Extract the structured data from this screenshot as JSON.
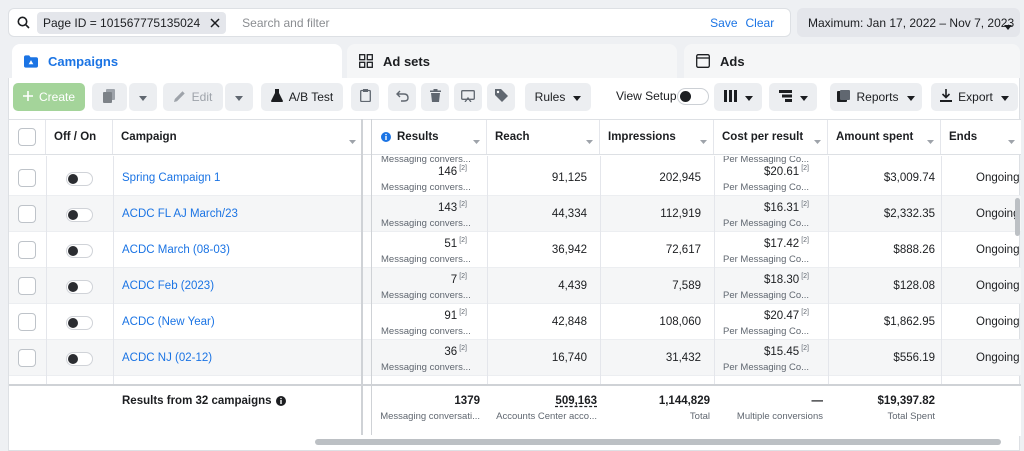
{
  "filter": {
    "chip_label": "Page ID = 101567775135024",
    "placeholder": "Search and filter",
    "save_label": "Save",
    "clear_label": "Clear"
  },
  "date_range": "Maximum: Jan 17, 2022 – Nov 7, 2023",
  "tabs": [
    {
      "label": "Campaigns",
      "icon": "folder-icon",
      "active": true
    },
    {
      "label": "Ad sets",
      "icon": "grid-icon",
      "active": false
    },
    {
      "label": "Ads",
      "icon": "ad-window-icon",
      "active": false
    }
  ],
  "toolbar": {
    "create_label": "Create",
    "edit_label": "Edit",
    "ab_test_label": "A/B Test",
    "rules_label": "Rules",
    "view_setup_label": "View Setup",
    "reports_label": "Reports",
    "export_label": "Export"
  },
  "columns": {
    "off_on": "Off / On",
    "campaign": "Campaign",
    "results": "Results",
    "reach": "Reach",
    "impressions": "Impressions",
    "cost_per_result": "Cost per result",
    "amount_spent": "Amount spent",
    "ends": "Ends"
  },
  "top_partial": {
    "results_sub": "Messaging convers...",
    "cpr_sub": "Per Messaging Co..."
  },
  "rows": [
    {
      "campaign": "Spring Campaign 1",
      "results": "146",
      "results_sub": "Messaging convers...",
      "reach": "91,125",
      "impressions": "202,945",
      "cost": "$20.61",
      "cost_sub": "Per Messaging Co...",
      "spent": "$3,009.74",
      "ends": "Ongoing"
    },
    {
      "campaign": "ACDC FL AJ March/23",
      "results": "143",
      "results_sub": "Messaging convers...",
      "reach": "44,334",
      "impressions": "112,919",
      "cost": "$16.31",
      "cost_sub": "Per Messaging Co...",
      "spent": "$2,332.35",
      "ends": "Ongoing"
    },
    {
      "campaign": "ACDC March (08-03)",
      "results": "51",
      "results_sub": "Messaging convers...",
      "reach": "36,942",
      "impressions": "72,617",
      "cost": "$17.42",
      "cost_sub": "Per Messaging Co...",
      "spent": "$888.26",
      "ends": "Ongoing"
    },
    {
      "campaign": "ACDC Feb (2023)",
      "results": "7",
      "results_sub": "Messaging convers...",
      "reach": "4,439",
      "impressions": "7,589",
      "cost": "$18.30",
      "cost_sub": "Per Messaging Co...",
      "spent": "$128.08",
      "ends": "Ongoing"
    },
    {
      "campaign": "ACDC (New Year)",
      "results": "91",
      "results_sub": "Messaging convers...",
      "reach": "42,848",
      "impressions": "108,060",
      "cost": "$20.47",
      "cost_sub": "Per Messaging Co...",
      "spent": "$1,862.95",
      "ends": "Ongoing"
    },
    {
      "campaign": "ACDC NJ (02-12)",
      "results": "36",
      "results_sub": "Messaging convers...",
      "reach": "16,740",
      "impressions": "31,432",
      "cost": "$15.45",
      "cost_sub": "Per Messaging Co...",
      "spent": "$556.19",
      "ends": "Ongoing"
    }
  ],
  "footnote_marker": "[2]",
  "totals": {
    "label": "Results from 32 campaigns",
    "results": "1379",
    "results_sub": "Messaging conversati...",
    "reach": "509,163",
    "reach_sub": "Accounts Center acco...",
    "impressions": "1,144,829",
    "impressions_sub": "Total",
    "cost": "—",
    "cost_sub": "Multiple conversions",
    "spent": "$19,397.82",
    "spent_sub": "Total Spent"
  },
  "colors": {
    "accent": "#1b74e4",
    "create_button": "#a4d49a"
  }
}
